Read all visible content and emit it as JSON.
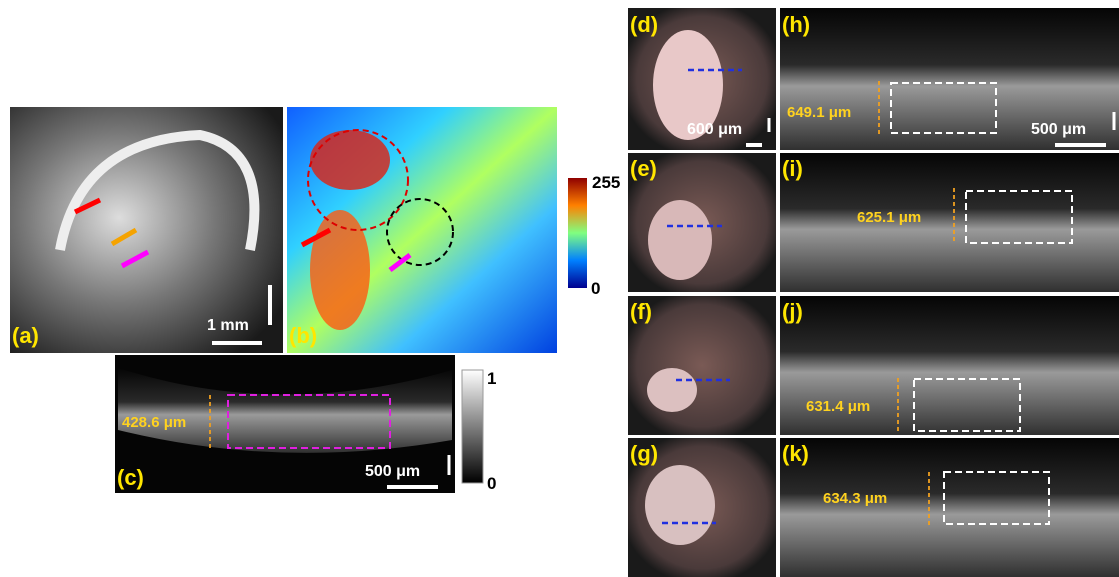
{
  "panels": [
    {
      "label": "(a)",
      "scale_bar": "1 mm"
    },
    {
      "label": "(b)"
    },
    {
      "label": "(c)",
      "thickness": "428.6 μm",
      "scale_bar": "500 μm"
    },
    {
      "label": "(d)",
      "scale_bar": "600 μm"
    },
    {
      "label": "(e)"
    },
    {
      "label": "(f)"
    },
    {
      "label": "(g)"
    },
    {
      "label": "(h)",
      "thickness": "649.1 μm",
      "scale_bar": "500 μm"
    },
    {
      "label": "(i)",
      "thickness": "625.1 μm"
    },
    {
      "label": "(j)",
      "thickness": "631.4 μm"
    },
    {
      "label": "(k)",
      "thickness": "634.3 μm"
    }
  ],
  "colorbars": [
    {
      "max": "255",
      "min": "0"
    },
    {
      "max": "1",
      "min": "0"
    }
  ]
}
